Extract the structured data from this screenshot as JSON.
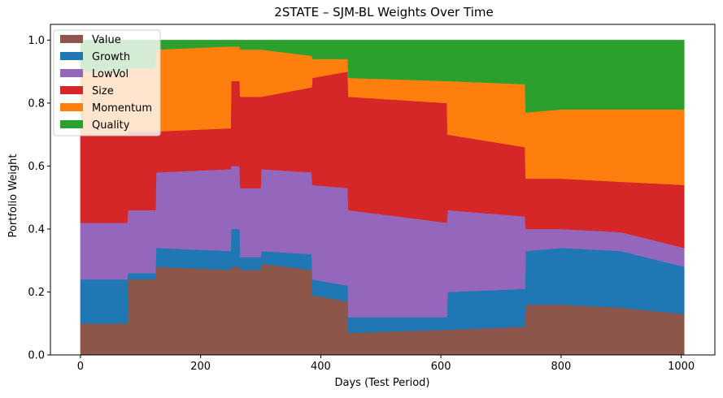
{
  "chart_data": {
    "type": "area",
    "stacked": true,
    "title": "2STATE – SJM-BL Weights Over Time",
    "xlabel": "Days (Test Period)",
    "ylabel": "Portfolio Weight",
    "xlim": [
      -50,
      1056
    ],
    "ylim": [
      0.0,
      1.05
    ],
    "xticks": [
      0,
      200,
      400,
      600,
      800,
      1000
    ],
    "yticks": [
      0.0,
      0.2,
      0.4,
      0.6,
      0.8,
      1.0
    ],
    "xtick_labels": [
      "0",
      "200",
      "400",
      "600",
      "800",
      "1000"
    ],
    "ytick_labels": [
      "0.0",
      "0.2",
      "0.4",
      "0.6",
      "0.8",
      "1.0"
    ],
    "grid": false,
    "legend_position": "top-left",
    "x": [
      0,
      78,
      79,
      125,
      126,
      250,
      251,
      265,
      266,
      300,
      301,
      385,
      386,
      445,
      446,
      610,
      611,
      740,
      741,
      800,
      900,
      1005
    ],
    "series": [
      {
        "name": "Value",
        "color": "#8c564b",
        "values": [
          0.1,
          0.1,
          0.24,
          0.24,
          0.28,
          0.27,
          0.28,
          0.28,
          0.27,
          0.27,
          0.29,
          0.27,
          0.19,
          0.17,
          0.07,
          0.08,
          0.08,
          0.09,
          0.16,
          0.16,
          0.15,
          0.13
        ]
      },
      {
        "name": "Growth",
        "color": "#1f77b4",
        "values": [
          0.14,
          0.14,
          0.02,
          0.02,
          0.06,
          0.06,
          0.12,
          0.12,
          0.04,
          0.04,
          0.04,
          0.05,
          0.05,
          0.05,
          0.05,
          0.04,
          0.12,
          0.12,
          0.17,
          0.18,
          0.18,
          0.15
        ]
      },
      {
        "name": "LowVol",
        "color": "#9467bd",
        "values": [
          0.18,
          0.18,
          0.2,
          0.2,
          0.24,
          0.26,
          0.2,
          0.2,
          0.22,
          0.22,
          0.26,
          0.26,
          0.3,
          0.31,
          0.34,
          0.3,
          0.26,
          0.23,
          0.07,
          0.06,
          0.06,
          0.06
        ]
      },
      {
        "name": "Size",
        "color": "#d62728",
        "values": [
          0.28,
          0.28,
          0.25,
          0.25,
          0.13,
          0.13,
          0.27,
          0.27,
          0.29,
          0.29,
          0.23,
          0.27,
          0.34,
          0.37,
          0.36,
          0.38,
          0.24,
          0.22,
          0.16,
          0.16,
          0.16,
          0.2
        ]
      },
      {
        "name": "Momentum",
        "color": "#ff7f0e",
        "values": [
          0.2,
          0.2,
          0.2,
          0.2,
          0.26,
          0.26,
          0.11,
          0.11,
          0.15,
          0.15,
          0.15,
          0.1,
          0.06,
          0.04,
          0.06,
          0.07,
          0.17,
          0.2,
          0.21,
          0.22,
          0.23,
          0.24
        ]
      },
      {
        "name": "Quality",
        "color": "#2ca02c",
        "values": [
          0.1,
          0.1,
          0.09,
          0.09,
          0.03,
          0.02,
          0.02,
          0.02,
          0.03,
          0.03,
          0.03,
          0.05,
          0.06,
          0.06,
          0.12,
          0.13,
          0.13,
          0.14,
          0.23,
          0.22,
          0.22,
          0.22
        ]
      }
    ]
  }
}
